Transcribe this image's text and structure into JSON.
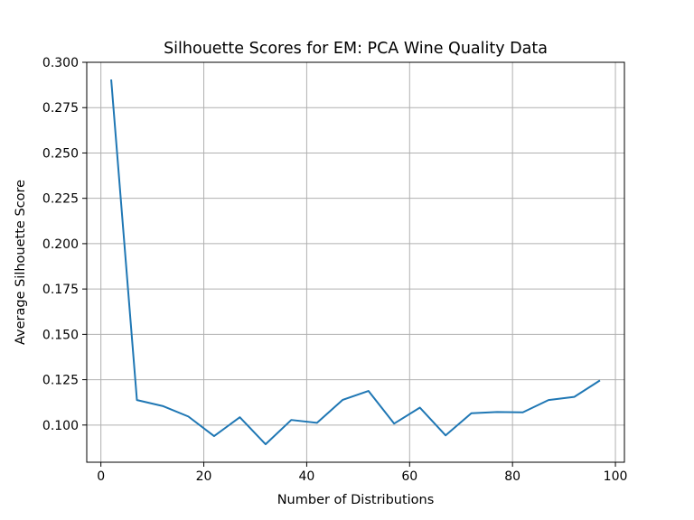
{
  "chart_data": {
    "type": "line",
    "title": "Silhouette Scores for EM: PCA Wine Quality Data",
    "xlabel": "Number of Distributions",
    "ylabel": "Average Silhouette Score",
    "xlim": [
      -2.75,
      101.75
    ],
    "ylim": [
      0.0795,
      0.3
    ],
    "xticks": [
      0,
      20,
      40,
      60,
      80,
      100
    ],
    "yticks": [
      0.1,
      0.125,
      0.15,
      0.175,
      0.2,
      0.225,
      0.25,
      0.275,
      0.3
    ],
    "ytick_labels": [
      "0.100",
      "0.125",
      "0.150",
      "0.175",
      "0.200",
      "0.225",
      "0.250",
      "0.275",
      "0.300"
    ],
    "grid": true,
    "series": [
      {
        "color": "#1f77b4",
        "x": [
          2,
          7,
          12,
          17,
          22,
          27,
          32,
          37,
          42,
          47,
          52,
          57,
          62,
          67,
          72,
          77,
          82,
          87,
          92,
          97
        ],
        "y": [
          0.2905,
          0.1138,
          0.1105,
          0.1047,
          0.0939,
          0.1043,
          0.0894,
          0.1028,
          0.1012,
          0.1139,
          0.1188,
          0.1008,
          0.1096,
          0.0943,
          0.1065,
          0.1072,
          0.107,
          0.1138,
          0.1155,
          0.1246
        ]
      }
    ]
  }
}
